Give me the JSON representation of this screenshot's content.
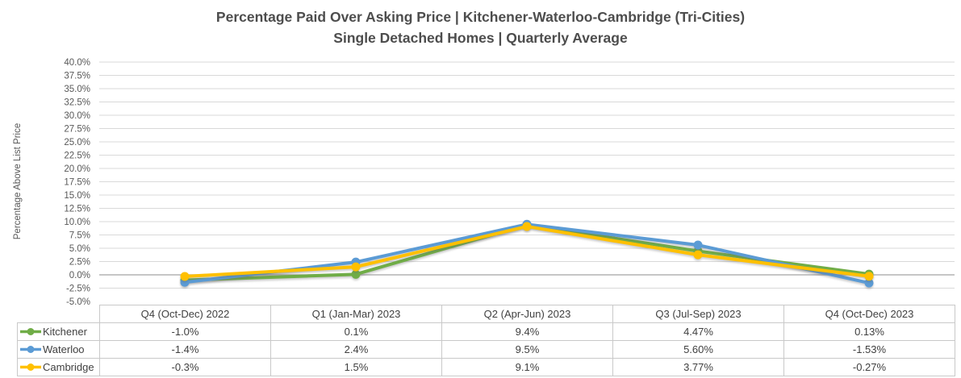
{
  "chart_data": {
    "type": "line",
    "title": "Percentage Paid Over Asking Price | Kitchener-Waterloo-Cambridge (Tri-Cities)",
    "subtitle": "Single Detached Homes | Quarterly Average",
    "ylabel": "Percentage Above List Price",
    "categories": [
      "Q4 (Oct-Dec) 2022",
      "Q1 (Jan-Mar) 2023",
      "Q2 (Apr-Jun) 2023",
      "Q3 (Jul-Sep) 2023",
      "Q4 (Oct-Dec) 2023"
    ],
    "series": [
      {
        "name": "Kitchener",
        "color": "#70AD47",
        "values": [
          -1.0,
          0.1,
          9.4,
          4.47,
          0.13
        ],
        "labels": [
          "-1.0%",
          "0.1%",
          "9.4%",
          "4.47%",
          "0.13%"
        ]
      },
      {
        "name": "Waterloo",
        "color": "#5B9BD5",
        "values": [
          -1.4,
          2.4,
          9.5,
          5.6,
          -1.53
        ],
        "labels": [
          "-1.4%",
          "2.4%",
          "9.5%",
          "5.60%",
          "-1.53%"
        ]
      },
      {
        "name": "Cambridge",
        "color": "#FFC000",
        "values": [
          -0.3,
          1.5,
          9.1,
          3.77,
          -0.27
        ],
        "labels": [
          "-0.3%",
          "1.5%",
          "9.1%",
          "3.77%",
          "-0.27%"
        ]
      }
    ],
    "ylim": [
      -5,
      40
    ],
    "ytick_step": 2.5,
    "yticks": [
      "40.0%",
      "37.5%",
      "35.0%",
      "32.5%",
      "30.0%",
      "27.5%",
      "25.0%",
      "22.5%",
      "20.0%",
      "17.5%",
      "15.0%",
      "12.5%",
      "10.0%",
      "7.5%",
      "5.0%",
      "2.5%",
      "0.0%",
      "-2.5%",
      "-5.0%"
    ],
    "grid": true,
    "legend_position": "data-table-left",
    "marker": "circle"
  },
  "colors": {
    "grid": "#d9d9d9",
    "zero_axis": "#b3b3b3",
    "title_text": "#4d4d4d",
    "axis_text": "#595959",
    "table_text": "#404040",
    "table_border": "#c9c9c9"
  }
}
